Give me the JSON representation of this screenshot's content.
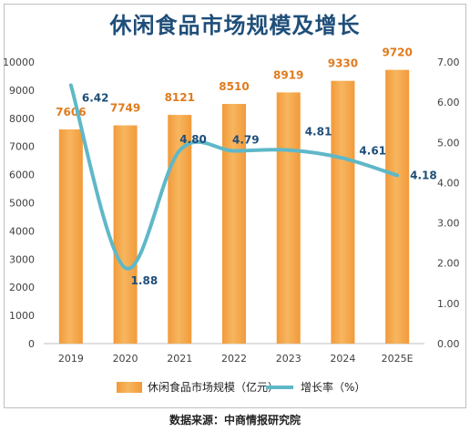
{
  "title": "休闲食品市场规模及增长",
  "source_note": "数据来源：中商情报研究院",
  "colors": {
    "bar": "#f29a3a",
    "bar_light": "#f7b65f",
    "line": "#5fb8c8",
    "title": "#1f4e79",
    "bar_label": "#e07b1f"
  },
  "chart_data": {
    "type": "bar",
    "categories": [
      "2019",
      "2020",
      "2021",
      "2022",
      "2023",
      "2024",
      "2025E"
    ],
    "series": [
      {
        "name": "休闲食品市场规模（亿元）",
        "type": "bar",
        "axis": "left",
        "values": [
          7606,
          7749,
          8121,
          8510,
          8919,
          9330,
          9720
        ]
      },
      {
        "name": "增长率（%）",
        "type": "line",
        "axis": "right",
        "values": [
          6.42,
          1.88,
          4.8,
          4.79,
          4.81,
          4.61,
          4.18
        ]
      }
    ],
    "data_labels": {
      "bars": [
        "7606",
        "7749",
        "8121",
        "8510",
        "8919",
        "9330",
        "9720"
      ],
      "rates": [
        "6.42",
        "1.88",
        "4.80",
        "4.79",
        "4.81",
        "4.61",
        "4.18"
      ]
    },
    "y_left": {
      "lim": [
        0,
        10000
      ],
      "ticks": [
        "0",
        "1000",
        "2000",
        "3000",
        "4000",
        "5000",
        "6000",
        "7000",
        "8000",
        "9000",
        "10000"
      ]
    },
    "y_right": {
      "lim": [
        0,
        7
      ],
      "ticks": [
        "0.00",
        "1.00",
        "2.00",
        "3.00",
        "4.00",
        "5.00",
        "6.00",
        "7.00"
      ]
    },
    "legend": {
      "position": "bottom",
      "items": [
        "休闲食品市场规模（亿元）",
        "增长率（%）"
      ]
    },
    "grid": false
  }
}
